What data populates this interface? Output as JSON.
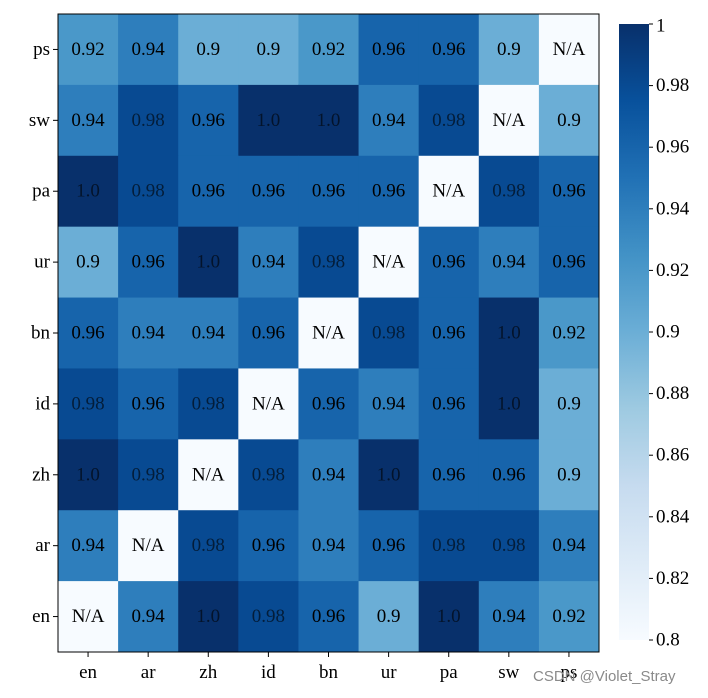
{
  "chart_data": {
    "type": "heatmap",
    "x_labels": [
      "en",
      "ar",
      "zh",
      "id",
      "bn",
      "ur",
      "pa",
      "sw",
      "ps"
    ],
    "y_labels_top_to_bottom": [
      "ps",
      "sw",
      "pa",
      "ur",
      "bn",
      "id",
      "zh",
      "ar",
      "en"
    ],
    "cells_text": [
      [
        "0.92",
        "0.94",
        "0.9",
        "0.9",
        "0.92",
        "0.96",
        "0.96",
        "0.9",
        "N/A"
      ],
      [
        "0.94",
        "0.98",
        "0.96",
        "1.0",
        "1.0",
        "0.94",
        "0.98",
        "N/A",
        "0.9"
      ],
      [
        "1.0",
        "0.98",
        "0.96",
        "0.96",
        "0.96",
        "0.96",
        "N/A",
        "0.98",
        "0.96"
      ],
      [
        "0.9",
        "0.96",
        "1.0",
        "0.94",
        "0.98",
        "N/A",
        "0.96",
        "0.94",
        "0.96"
      ],
      [
        "0.96",
        "0.94",
        "0.94",
        "0.96",
        "N/A",
        "0.98",
        "0.96",
        "1.0",
        "0.92"
      ],
      [
        "0.98",
        "0.96",
        "0.98",
        "N/A",
        "0.96",
        "0.94",
        "0.96",
        "1.0",
        "0.9"
      ],
      [
        "1.0",
        "0.98",
        "N/A",
        "0.98",
        "0.94",
        "1.0",
        "0.96",
        "0.96",
        "0.9"
      ],
      [
        "0.94",
        "N/A",
        "0.98",
        "0.96",
        "0.94",
        "0.96",
        "0.98",
        "0.98",
        "0.94"
      ],
      [
        "N/A",
        "0.94",
        "1.0",
        "0.98",
        "0.96",
        "0.9",
        "1.0",
        "0.94",
        "0.92"
      ]
    ],
    "na_fill_value": 0.8,
    "colormap": "Blues",
    "colorbar": {
      "range": [
        0.8,
        1.0
      ],
      "ticks": [
        0.8,
        0.82,
        0.84,
        0.86,
        0.88,
        0.9,
        0.92,
        0.94,
        0.96,
        0.98,
        1.0
      ],
      "tick_labels": [
        "0.8",
        "0.82",
        "0.84",
        "0.86",
        "0.88",
        "0.9",
        "0.92",
        "0.94",
        "0.96",
        "0.98",
        "1"
      ]
    }
  },
  "watermark": "CSDN @Violet_Stray"
}
